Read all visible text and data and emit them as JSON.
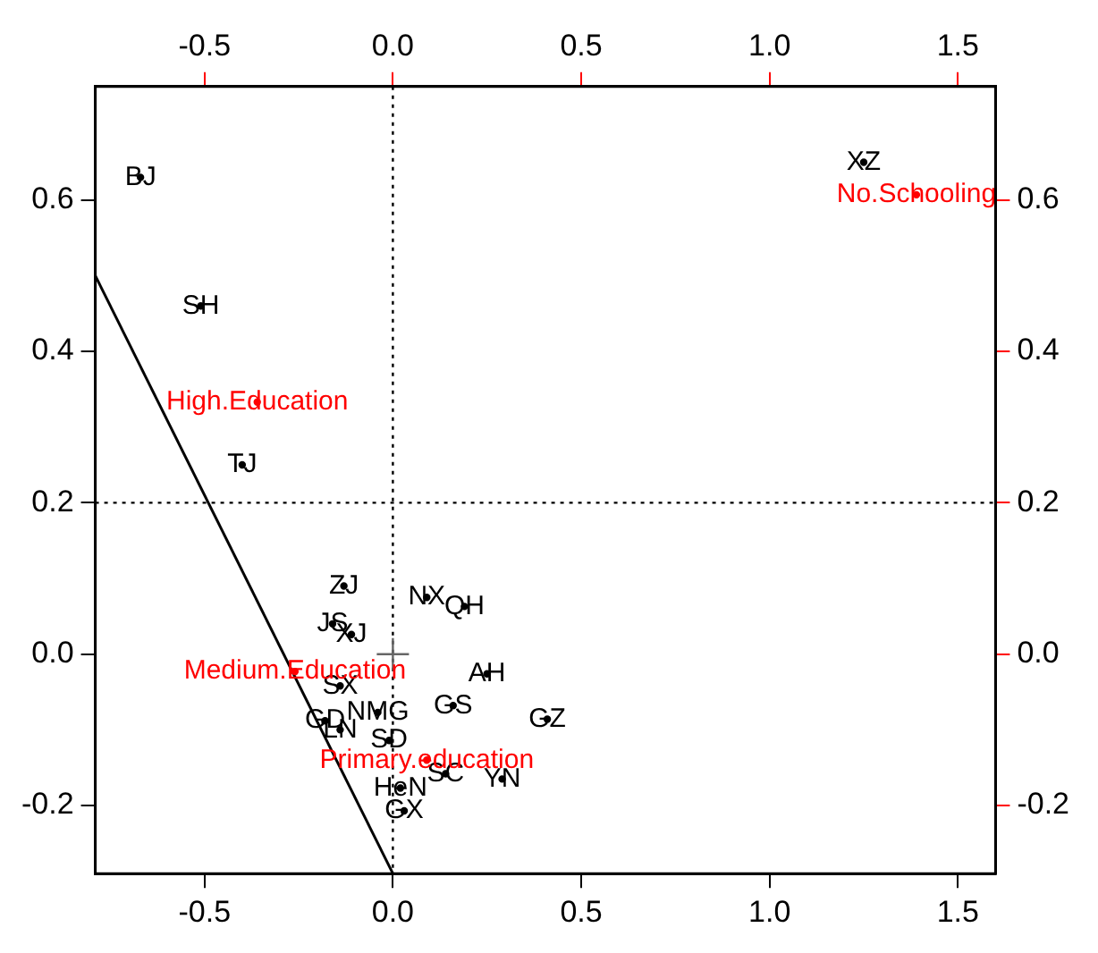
{
  "chart_data": {
    "type": "scatter",
    "xlim": [
      -0.79,
      1.6
    ],
    "xticks": [
      -0.5,
      {
        "value": 0,
        "label": "0.0"
      },
      0.5,
      {
        "value": 1,
        "label": "1.0"
      },
      1.5
    ],
    "x2lim": [
      -0.79,
      1.6
    ],
    "x2ticks": [
      -0.5,
      {
        "value": 0,
        "label": "0.0"
      },
      0.5,
      {
        "value": 1,
        "label": "1.0"
      },
      1.5
    ],
    "ylim": [
      -0.29,
      0.75
    ],
    "yticks": [
      -0.2,
      {
        "value": 0,
        "label": "0.0"
      },
      0.2,
      0.4,
      0.6
    ],
    "y2lim": [
      -0.29,
      0.75
    ],
    "y2ticks": [
      -0.2,
      {
        "value": 0,
        "label": "0.0"
      },
      0.2,
      0.4,
      0.6
    ],
    "grid": false,
    "legend": false,
    "marker": "none",
    "ref_lines": [
      {
        "axis": "x",
        "value": 0.0,
        "line_style": "dotted",
        "color": "#000000"
      },
      {
        "axis": "y",
        "value": 0.2,
        "line_style": "dotted",
        "color": "#000000"
      }
    ],
    "series": [
      {
        "type": "scatter",
        "color": "#000000",
        "marker": "circle",
        "x": [
          -0.67,
          -0.51,
          -0.4,
          1.25,
          -0.13,
          0.09,
          0.19,
          -0.16,
          -0.11,
          0.25,
          -0.14,
          0.16,
          0.41,
          -0.04,
          -0.18,
          -0.14,
          -0.01,
          0.02,
          0.14,
          0.29,
          0.03
        ],
        "values": [
          0.63,
          0.46,
          0.25,
          0.65,
          0.09,
          0.075,
          0.063,
          0.04,
          0.026,
          -0.026,
          -0.042,
          -0.068,
          -0.086,
          -0.077,
          -0.088,
          -0.1,
          -0.114,
          -0.177,
          -0.158,
          -0.165,
          -0.207
        ],
        "value_labels": [
          "BJ",
          "SH",
          "TJ",
          "XZ",
          "ZJ",
          "NX",
          "QH",
          "JS",
          "XJ",
          "AH",
          "SX",
          "GS",
          "GZ",
          "NMG",
          "GD",
          "LN",
          "SD",
          "HeN",
          "SC",
          "YN",
          "GX"
        ]
      },
      {
        "type": "scatter",
        "color": "#ff0000",
        "marker": "circle",
        "x": [
          1.39,
          -0.36,
          -0.26,
          0.09
        ],
        "values": [
          0.607,
          0.333,
          -0.023,
          -0.14
        ],
        "value_labels": [
          "No.Schooling",
          "High.Education",
          "Medium.Education",
          "Primary.education"
        ]
      },
      {
        "type": "line",
        "color": "#000000",
        "x": [
          -0.79,
          0.0
        ],
        "values": [
          0.5,
          -0.29
        ],
        "line_style": "solid"
      },
      {
        "type": "scatter",
        "color": "#666666",
        "marker": "cross",
        "x": [
          0.0
        ],
        "values": [
          0.0
        ]
      }
    ]
  }
}
